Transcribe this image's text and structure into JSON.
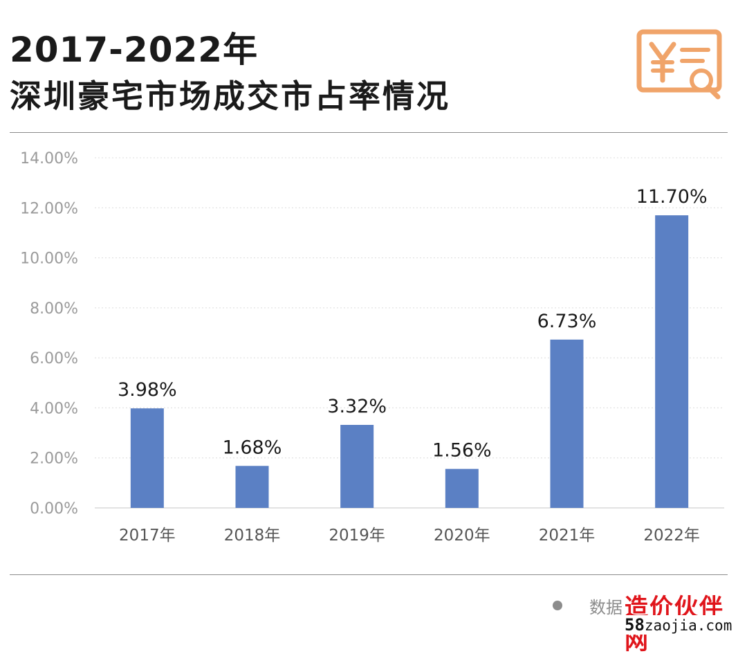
{
  "header": {
    "title_line1": "2017-2022年",
    "title_line2": "深圳豪宅市场成交市占率情况",
    "icon": "yuan-document-search-icon"
  },
  "chart_data": {
    "type": "bar",
    "categories": [
      "2017年",
      "2018年",
      "2019年",
      "2020年",
      "2021年",
      "2022年"
    ],
    "values": [
      3.98,
      1.68,
      3.32,
      1.56,
      6.73,
      11.7
    ],
    "value_labels": [
      "3.98%",
      "1.68%",
      "3.32%",
      "1.56%",
      "6.73%",
      "11.70%"
    ],
    "yticks": [
      "0.00%",
      "2.00%",
      "4.00%",
      "6.00%",
      "8.00%",
      "10.00%",
      "12.00%",
      "14.00%"
    ],
    "ylim": [
      0,
      14
    ],
    "grid": true,
    "bar_color": "#5b80c4"
  },
  "footer": {
    "source_text": "数据",
    "watermark_name": "造价伙伴网",
    "watermark_url_prefix": "58",
    "watermark_url_rest": "zaojia.com"
  },
  "colors": {
    "accent": "#f0a46a",
    "watermark_red": "#e0151b"
  }
}
